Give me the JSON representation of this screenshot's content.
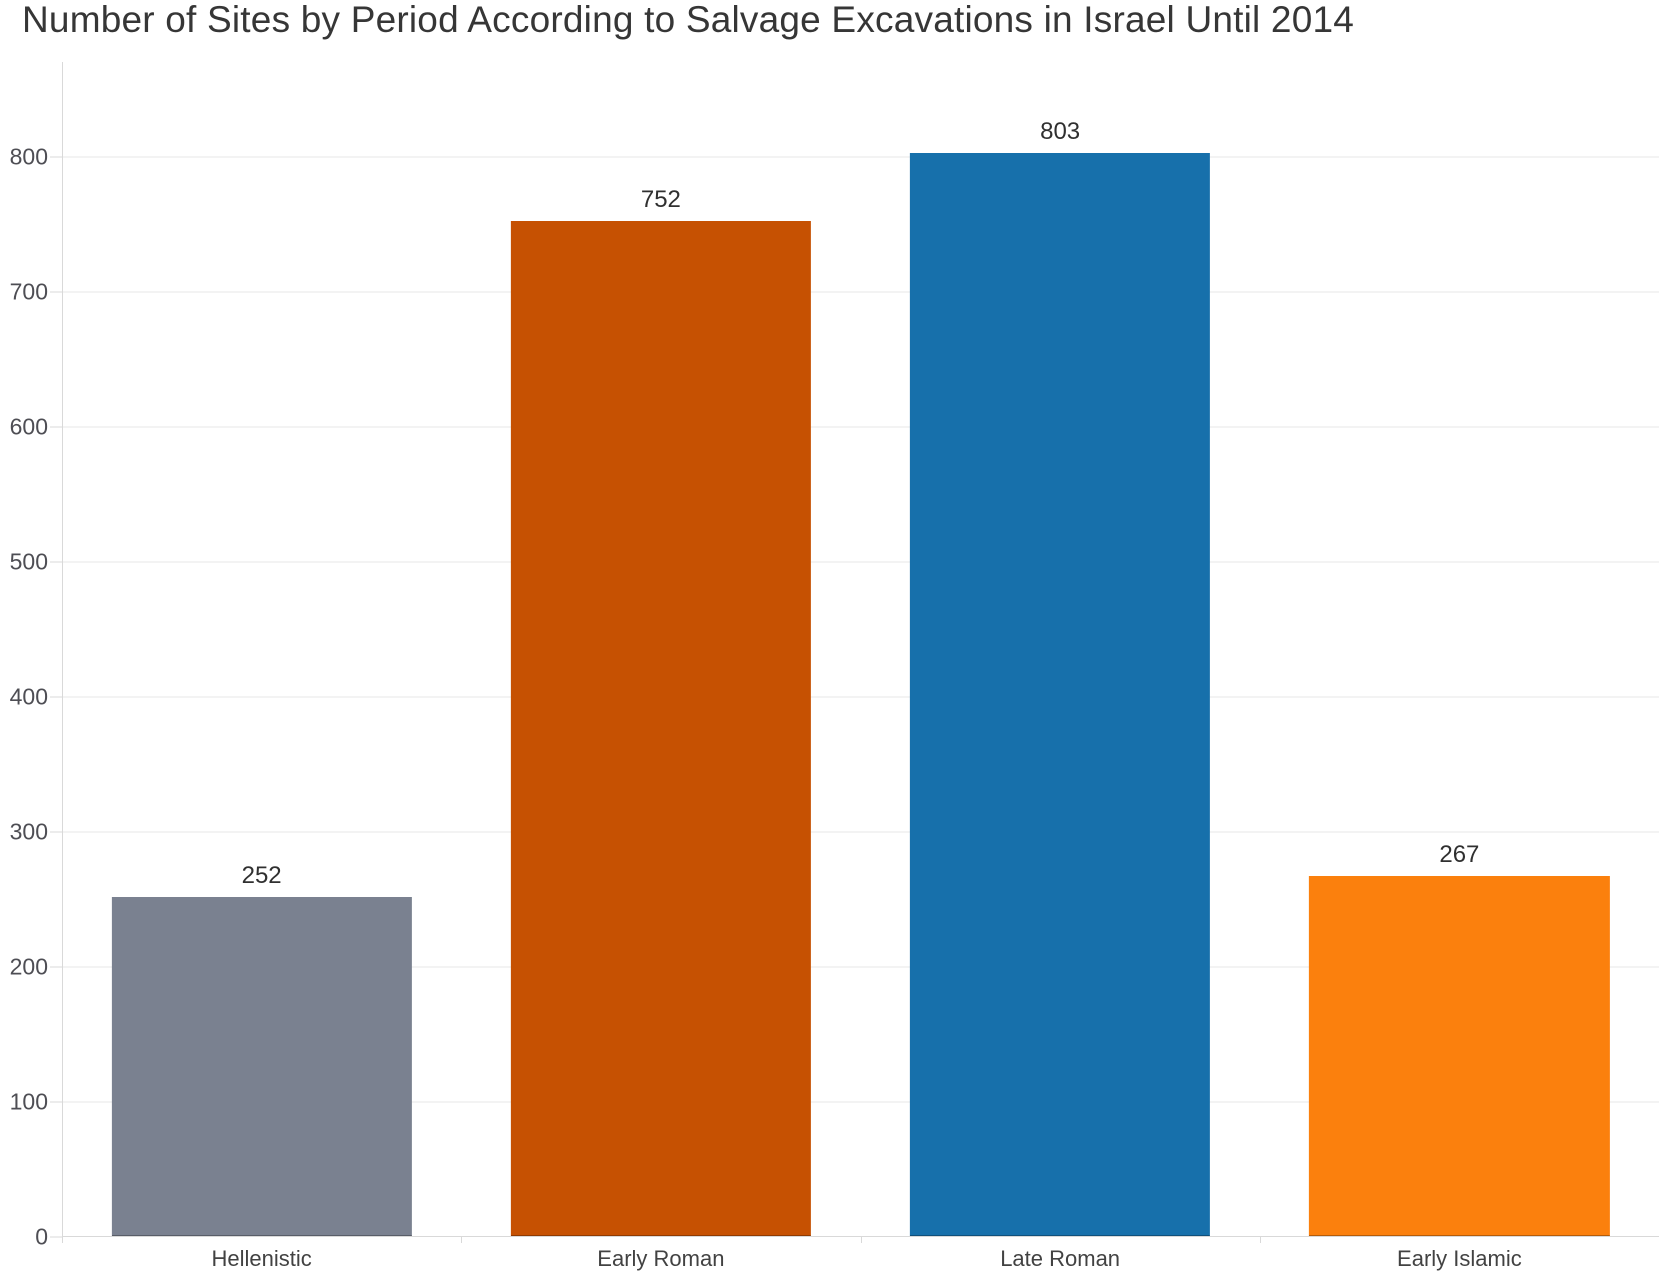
{
  "chart_data": {
    "type": "bar",
    "title": "Number of Sites by Period According to Salvage Excavations in Israel Until 2014",
    "categories": [
      "Hellenistic",
      "Early Roman",
      "Late Roman",
      "Early Islamic"
    ],
    "values": [
      252,
      752,
      803,
      267
    ],
    "bar_colors": [
      "#7A8190",
      "#C65102",
      "#1770AB",
      "#FB800D"
    ],
    "xlabel": "",
    "ylabel": "",
    "ylim": [
      0,
      870
    ],
    "yticks": [
      0,
      100,
      200,
      300,
      400,
      500,
      600,
      700,
      800
    ],
    "grid": "horizontal",
    "legend": "none",
    "value_labels_shown": true
  },
  "style": {
    "background": "#ffffff",
    "title_color": "#363636",
    "grid_color": "#e7e7e7",
    "axis_color": "#d9d9d9",
    "tick_color": "#d9d9d9",
    "y_tick_label_color": "#4e4e54",
    "value_label_color": "#303030",
    "category_label_color": "#424242"
  }
}
